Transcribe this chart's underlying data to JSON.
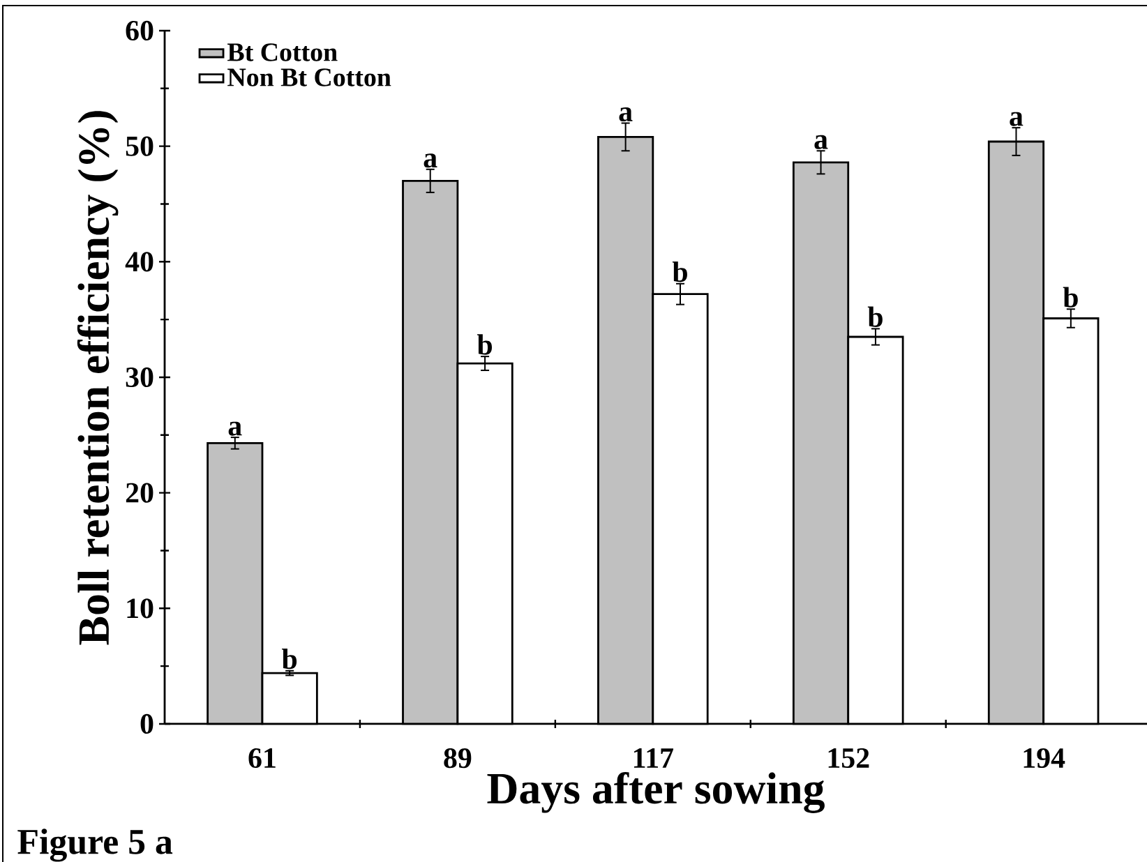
{
  "chart_data": {
    "type": "bar",
    "categories": [
      "61",
      "89",
      "117",
      "152",
      "194"
    ],
    "series": [
      {
        "name": "Bt Cotton",
        "color": "#c0c0c0",
        "values": [
          24.3,
          47.0,
          50.8,
          48.6,
          50.4
        ],
        "errors": [
          0.5,
          1.0,
          1.2,
          1.0,
          1.2
        ]
      },
      {
        "name": "Non Bt Cotton",
        "color": "#ffffff",
        "values": [
          4.4,
          31.2,
          37.2,
          33.5,
          35.1
        ],
        "errors": [
          0.2,
          0.6,
          0.9,
          0.7,
          0.8
        ]
      }
    ],
    "xlabel": "Days after sowing",
    "ylabel": "Boll retention efficiency (%)",
    "ylim": [
      0,
      60
    ],
    "yticks": [
      0,
      10,
      20,
      30,
      40,
      50,
      60
    ],
    "legend": "top left",
    "grid": false,
    "annotations": [
      {
        "text": "a",
        "x": "61",
        "y": 24.3
      },
      {
        "text": "b",
        "x": "61",
        "y": 4.4
      },
      {
        "text": "a",
        "x": "89",
        "y": 47.0
      },
      {
        "text": "b",
        "x": "89",
        "y": 31.2
      },
      {
        "text": "a",
        "x": "117",
        "y": 50.8
      },
      {
        "text": "b",
        "x": "117",
        "y": 37.2
      },
      {
        "text": "a",
        "x": "152",
        "y": 48.6
      },
      {
        "text": "b",
        "x": "152",
        "y": 33.5
      },
      {
        "text": "a",
        "x": "194",
        "y": 50.4
      },
      {
        "text": "b",
        "x": "194",
        "y": 35.1
      },
      "Figure 5 a"
    ]
  }
}
